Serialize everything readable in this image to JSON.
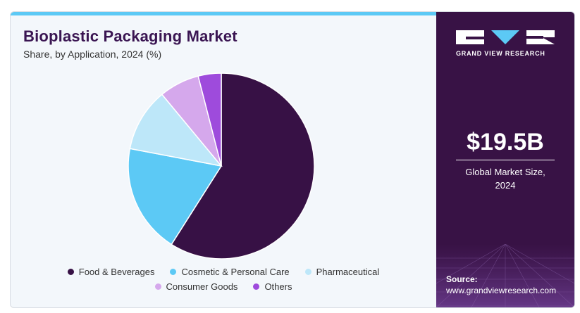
{
  "header": {
    "title": "Bioplastic Packaging Market",
    "subtitle": "Share, by Application, 2024 (%)"
  },
  "brand": {
    "name": "GRAND VIEW RESEARCH"
  },
  "summary": {
    "value": "$19.5B",
    "label_line1": "Global Market Size,",
    "label_line2": "2024"
  },
  "source": {
    "label": "Source:",
    "url": "www.grandviewresearch.com"
  },
  "colors": {
    "accent": "#5cc9f5",
    "panel": "#381245",
    "title": "#3a1552"
  },
  "chart_data": {
    "type": "pie",
    "title": "Bioplastic Packaging Market",
    "subtitle": "Share, by Application, 2024 (%)",
    "categories": [
      "Food & Beverages",
      "Cosmetic & Personal Care",
      "Pharmaceutical",
      "Consumer Goods",
      "Others"
    ],
    "values": [
      59,
      19,
      11,
      7,
      4
    ],
    "colors": [
      "#371145",
      "#5cc9f5",
      "#bde7f9",
      "#d5a8ec",
      "#9e4bdc"
    ],
    "start_angle_deg": 0,
    "direction": "clockwise",
    "legend_position": "bottom"
  }
}
